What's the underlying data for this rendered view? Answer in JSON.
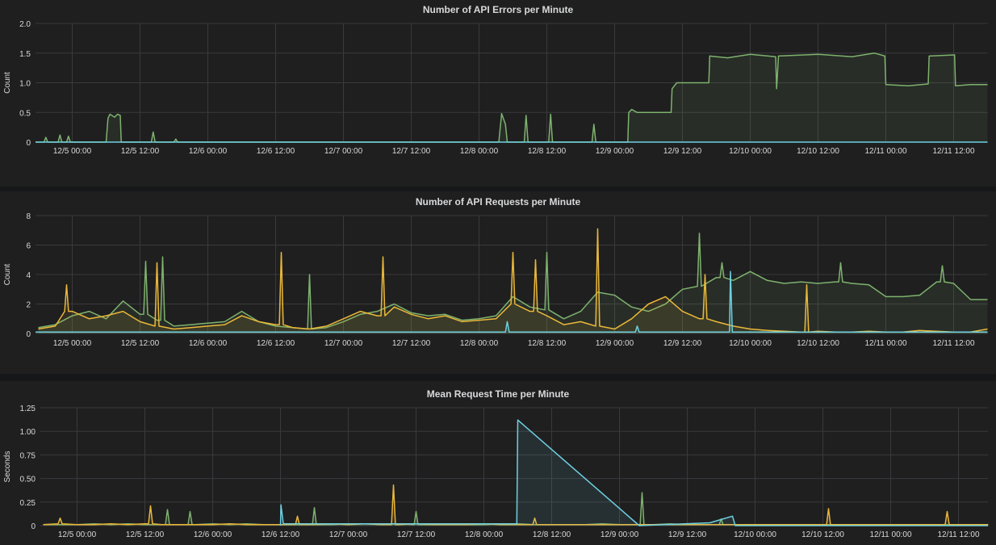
{
  "colors": {
    "green": "#7eb26d",
    "yellow": "#eab839",
    "cyan": "#6ed0e0",
    "background": "#1f1f20",
    "grid": "#3a3a3c",
    "text": "#d8d9da"
  },
  "x_ticks": [
    "12/5 00:00",
    "12/5 12:00",
    "12/6 00:00",
    "12/6 12:00",
    "12/7 00:00",
    "12/7 12:00",
    "12/8 00:00",
    "12/8 12:00",
    "12/9 00:00",
    "12/9 12:00",
    "12/10 00:00",
    "12/10 12:00",
    "12/11 00:00",
    "12/11 12:00"
  ],
  "chart_data": [
    {
      "type": "line",
      "title": "Number of API Errors per Minute",
      "ylabel": "Count",
      "xlim": [
        "12/4 17:30",
        "12/11 18:00"
      ],
      "ylim": [
        0,
        2
      ],
      "y_ticks": [
        "0",
        "0.5",
        "1.0",
        "1.5",
        "2.0"
      ],
      "y_tick_values": [
        0,
        0.5,
        1,
        1.5,
        2
      ],
      "grid": true,
      "fill": true,
      "series": [
        {
          "color": "#7eb26d",
          "points": [
            [
              "12/4 17:30",
              0
            ],
            [
              "12/4 19:00",
              0
            ],
            [
              "12/4 19:20",
              0.08
            ],
            [
              "12/4 19:40",
              0
            ],
            [
              "12/4 21:30",
              0
            ],
            [
              "12/4 21:50",
              0.12
            ],
            [
              "12/4 22:10",
              0
            ],
            [
              "12/4 23:00",
              0
            ],
            [
              "12/4 23:20",
              0.1
            ],
            [
              "12/4 23:40",
              0
            ],
            [
              "12/5 06:00",
              0
            ],
            [
              "12/5 06:20",
              0.4
            ],
            [
              "12/5 06:40",
              0.47
            ],
            [
              "12/5 07:30",
              0.42
            ],
            [
              "12/5 08:00",
              0.47
            ],
            [
              "12/5 08:30",
              0.45
            ],
            [
              "12/5 08:40",
              0
            ],
            [
              "12/5 14:00",
              0
            ],
            [
              "12/5 14:20",
              0.17
            ],
            [
              "12/5 14:40",
              0
            ],
            [
              "12/5 18:00",
              0
            ],
            [
              "12/5 18:20",
              0.05
            ],
            [
              "12/5 18:40",
              0
            ],
            [
              "12/8 03:30",
              0
            ],
            [
              "12/8 04:00",
              0.48
            ],
            [
              "12/8 04:40",
              0.3
            ],
            [
              "12/8 05:00",
              0
            ],
            [
              "12/8 08:00",
              0
            ],
            [
              "12/8 08:20",
              0.45
            ],
            [
              "12/8 08:40",
              0
            ],
            [
              "12/8 12:20",
              0
            ],
            [
              "12/8 12:40",
              0.47
            ],
            [
              "12/8 13:00",
              0
            ],
            [
              "12/8 20:00",
              0
            ],
            [
              "12/8 20:20",
              0.3
            ],
            [
              "12/8 20:40",
              0
            ],
            [
              "12/9 02:20",
              0
            ],
            [
              "12/9 02:30",
              0.5
            ],
            [
              "12/9 03:00",
              0.55
            ],
            [
              "12/9 04:00",
              0.5
            ],
            [
              "12/9 10:00",
              0.5
            ],
            [
              "12/9 10:10",
              0.9
            ],
            [
              "12/9 11:00",
              1.0
            ],
            [
              "12/9 16:40",
              1.0
            ],
            [
              "12/9 16:50",
              1.45
            ],
            [
              "12/9 20:00",
              1.42
            ],
            [
              "12/10 00:00",
              1.48
            ],
            [
              "12/10 04:30",
              1.44
            ],
            [
              "12/10 04:40",
              0.9
            ],
            [
              "12/10 05:00",
              1.45
            ],
            [
              "12/10 12:00",
              1.48
            ],
            [
              "12/10 18:00",
              1.44
            ],
            [
              "12/10 22:00",
              1.5
            ],
            [
              "12/10 23:50",
              1.45
            ],
            [
              "12/11 00:00",
              0.97
            ],
            [
              "12/11 04:00",
              0.95
            ],
            [
              "12/11 07:30",
              0.98
            ],
            [
              "12/11 07:40",
              1.45
            ],
            [
              "12/11 12:10",
              1.47
            ],
            [
              "12/11 12:20",
              0.95
            ],
            [
              "12/11 15:00",
              0.97
            ],
            [
              "12/11 18:00",
              0.97
            ]
          ]
        },
        {
          "color": "#6ed0e0",
          "points": [
            [
              "12/4 17:30",
              0
            ],
            [
              "12/11 18:00",
              0
            ]
          ]
        }
      ]
    },
    {
      "type": "line",
      "title": "Number of API Requests per Minute",
      "ylabel": "Count",
      "xlim": [
        "12/4 17:30",
        "12/11 18:00"
      ],
      "ylim": [
        0,
        8
      ],
      "y_ticks": [
        "0",
        "2",
        "4",
        "6",
        "8"
      ],
      "y_tick_values": [
        0,
        2,
        4,
        6,
        8
      ],
      "grid": true,
      "fill": true,
      "series": [
        {
          "color": "#7eb26d",
          "start": "12/4 18:00",
          "step_hours": 3,
          "values": [
            0.4,
            0.6,
            1.2,
            1.5,
            1.0,
            2.2,
            1.3,
            0.9,
            0.5,
            0.6,
            0.7,
            0.8,
            1.5,
            0.8,
            0.5,
            0.4,
            0.3,
            0.4,
            0.8,
            1.3,
            1.5,
            2.0,
            1.4,
            1.2,
            1.3,
            0.9,
            1.0,
            1.2,
            2.5,
            1.8,
            1.6,
            1.0,
            1.5,
            2.8,
            2.6,
            1.8,
            1.5,
            2.0,
            3.0,
            3.2,
            3.8,
            3.6,
            4.2,
            3.6,
            3.4,
            3.5,
            3.4,
            3.5,
            3.4,
            3.3,
            2.5,
            2.5,
            2.6,
            3.5,
            3.4,
            2.3,
            2.3
          ],
          "spikes": [
            [
              "12/5 13:00",
              4.9
            ],
            [
              "12/5 16:00",
              5.2
            ],
            [
              "12/6 18:00",
              4.0
            ],
            [
              "12/8 12:00",
              5.5
            ],
            [
              "12/9 15:00",
              6.8
            ],
            [
              "12/9 19:00",
              4.8
            ],
            [
              "12/10 16:00",
              4.8
            ],
            [
              "12/11 10:00",
              4.6
            ]
          ]
        },
        {
          "color": "#eab839",
          "start": "12/4 18:00",
          "step_hours": 3,
          "values": [
            0.3,
            0.5,
            1.5,
            1.0,
            1.2,
            1.5,
            0.8,
            0.5,
            0.3,
            0.4,
            0.5,
            0.6,
            1.2,
            0.8,
            0.6,
            0.4,
            0.3,
            0.5,
            1.0,
            1.5,
            1.2,
            1.8,
            1.3,
            1.0,
            1.2,
            0.8,
            0.9,
            1.0,
            2.0,
            1.5,
            1.2,
            0.6,
            0.8,
            0.5,
            0.3,
            1.0,
            2.0,
            2.5,
            1.5,
            1.0,
            0.8,
            0.5,
            0.3,
            0.2,
            0.15,
            0.1,
            0.15,
            0.1,
            0.1,
            0.15,
            0.1,
            0.1,
            0.2,
            0.15,
            0.1,
            0.1,
            0.3
          ],
          "spikes": [
            [
              "12/4 23:00",
              3.3
            ],
            [
              "12/5 15:00",
              4.8
            ],
            [
              "12/6 13:00",
              5.5
            ],
            [
              "12/7 07:00",
              5.2
            ],
            [
              "12/8 06:00",
              5.5
            ],
            [
              "12/8 10:00",
              5.0
            ],
            [
              "12/8 21:00",
              7.1
            ],
            [
              "12/9 16:00",
              4.0
            ],
            [
              "12/10 10:00",
              3.3
            ]
          ]
        },
        {
          "color": "#6ed0e0",
          "points": [
            [
              "12/4 17:30",
              0.1
            ],
            [
              "12/8 04:40",
              0.1
            ],
            [
              "12/8 05:00",
              0.8
            ],
            [
              "12/8 05:20",
              0.1
            ],
            [
              "12/9 03:40",
              0.1
            ],
            [
              "12/9 04:00",
              0.5
            ],
            [
              "12/9 04:20",
              0.1
            ],
            [
              "12/9 20:20",
              0.1
            ],
            [
              "12/9 20:30",
              4.2
            ],
            [
              "12/9 20:50",
              0.1
            ],
            [
              "12/11 18:00",
              0.1
            ]
          ]
        }
      ]
    },
    {
      "type": "line",
      "title": "Mean Request Time per Minute",
      "ylabel": "Seconds",
      "xlim": [
        "12/4 17:30",
        "12/11 17:15"
      ],
      "ylim": [
        0,
        1.25
      ],
      "y_ticks": [
        "0",
        "0.25",
        "0.50",
        "0.75",
        "1.00",
        "1.25"
      ],
      "y_tick_values": [
        0,
        0.25,
        0.5,
        0.75,
        1,
        1.25
      ],
      "grid": true,
      "fill": true,
      "series": [
        {
          "color": "#7eb26d",
          "start": "12/4 18:00",
          "step_hours": 3,
          "values": [
            0.01,
            0.01,
            0.01,
            0.02,
            0.01,
            0.02,
            0.01,
            0.01,
            0.01,
            0.01,
            0.02,
            0.01,
            0.02,
            0.01,
            0.01,
            0.01,
            0.01,
            0.01,
            0.02,
            0.02,
            0.01,
            0.02,
            0.01,
            0.01,
            0.02,
            0.01,
            0.01,
            0.02,
            0.02,
            0.01,
            0.01,
            0.01,
            0.01,
            0.02,
            0.01,
            0.01,
            0.01,
            0.02,
            0.01,
            0.01,
            0.01,
            0.01,
            0.01,
            0.01,
            0.01,
            0.01,
            0.01,
            0.01,
            0.01,
            0.01,
            0.01,
            0.01,
            0.01,
            0.01,
            0.01,
            0.01,
            0.01
          ],
          "spikes": [
            [
              "12/5 16:00",
              0.17
            ],
            [
              "12/5 20:00",
              0.15
            ],
            [
              "12/6 18:00",
              0.19
            ],
            [
              "12/7 12:00",
              0.15
            ],
            [
              "12/9 04:00",
              0.35
            ],
            [
              "12/9 18:00",
              0.07
            ]
          ]
        },
        {
          "color": "#eab839",
          "start": "12/4 18:00",
          "step_hours": 3,
          "values": [
            0.01,
            0.02,
            0.01,
            0.01,
            0.02,
            0.01,
            0.02,
            0.01,
            0.01,
            0.01,
            0.01,
            0.02,
            0.01,
            0.01,
            0.01,
            0.01,
            0.01,
            0.02,
            0.01,
            0.02,
            0.01,
            0.01,
            0.02,
            0.01,
            0.01,
            0.01,
            0.02,
            0.01,
            0.01,
            0.01,
            0.01,
            0.01,
            0.01,
            0.01,
            0.01,
            0.01,
            0.01,
            0.01,
            0.01,
            0.01,
            0.01,
            0.01,
            0.01,
            0.01,
            0.01,
            0.01,
            0.01,
            0.01,
            0.01,
            0.01,
            0.01,
            0.01,
            0.01,
            0.01,
            0.01,
            0.01,
            0.01
          ],
          "spikes": [
            [
              "12/4 21:00",
              0.08
            ],
            [
              "12/5 13:00",
              0.21
            ],
            [
              "12/6 15:00",
              0.1
            ],
            [
              "12/7 08:00",
              0.43
            ],
            [
              "12/8 09:00",
              0.08
            ],
            [
              "12/10 13:00",
              0.18
            ],
            [
              "12/11 10:00",
              0.15
            ]
          ]
        },
        {
          "color": "#6ed0e0",
          "points": [
            [
              "12/6 12:00",
              0
            ],
            [
              "12/6 12:05",
              0.22
            ],
            [
              "12/6 12:30",
              0.02
            ],
            [
              "12/8 05:50",
              0.02
            ],
            [
              "12/8 06:00",
              1.12
            ],
            [
              "12/9 03:30",
              0
            ],
            [
              "12/9 16:00",
              0.03
            ],
            [
              "12/9 20:00",
              0.1
            ],
            [
              "12/9 20:30",
              0
            ],
            [
              "12/11 17:15",
              0
            ]
          ]
        }
      ]
    }
  ]
}
